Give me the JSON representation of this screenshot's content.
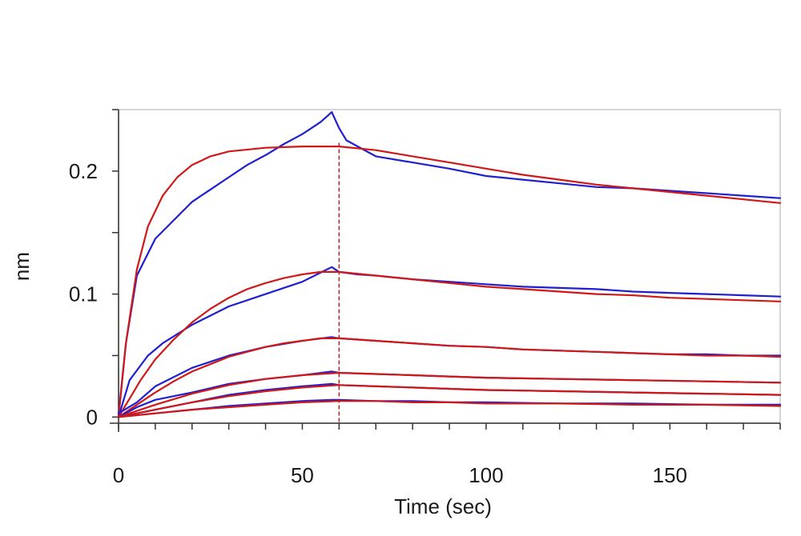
{
  "chart_data": {
    "type": "line",
    "xlabel": "Time (sec)",
    "ylabel": "nm",
    "xlim": [
      0,
      180
    ],
    "ylim": [
      -0.005,
      0.25
    ],
    "x_ticks": [
      {
        "value": 0,
        "label": "0"
      },
      {
        "value": 50,
        "label": "50"
      },
      {
        "value": 100,
        "label": "100"
      },
      {
        "value": 150,
        "label": "150"
      }
    ],
    "y_ticks": [
      {
        "value": 0,
        "label": "0"
      },
      {
        "value": 0.1,
        "label": "0.1"
      },
      {
        "value": 0.2,
        "label": "0.2"
      }
    ],
    "x_minor_step": 10,
    "y_minor_step": 0.05,
    "dissociation_start_x": 60,
    "grid": false,
    "colors": {
      "measured": "#1f1fd0",
      "fit": "#d01818",
      "axis": "#333333",
      "frame": "#c8c8c8",
      "marker_line": "#b22222"
    },
    "series": [
      {
        "role": "measured",
        "points": [
          [
            0,
            0.002
          ],
          [
            2,
            0.06
          ],
          [
            5,
            0.115
          ],
          [
            10,
            0.145
          ],
          [
            15,
            0.16
          ],
          [
            20,
            0.175
          ],
          [
            25,
            0.185
          ],
          [
            30,
            0.195
          ],
          [
            35,
            0.205
          ],
          [
            40,
            0.213
          ],
          [
            45,
            0.222
          ],
          [
            50,
            0.23
          ],
          [
            55,
            0.24
          ],
          [
            58,
            0.248
          ],
          [
            60,
            0.235
          ],
          [
            62,
            0.225
          ],
          [
            70,
            0.212
          ],
          [
            80,
            0.207
          ],
          [
            90,
            0.202
          ],
          [
            100,
            0.196
          ],
          [
            110,
            0.193
          ],
          [
            120,
            0.19
          ],
          [
            130,
            0.187
          ],
          [
            140,
            0.186
          ],
          [
            150,
            0.184
          ],
          [
            160,
            0.182
          ],
          [
            170,
            0.18
          ],
          [
            180,
            0.178
          ]
        ]
      },
      {
        "role": "fit",
        "points": [
          [
            0,
            0.0
          ],
          [
            2,
            0.06
          ],
          [
            5,
            0.12
          ],
          [
            8,
            0.155
          ],
          [
            12,
            0.18
          ],
          [
            16,
            0.195
          ],
          [
            20,
            0.205
          ],
          [
            25,
            0.212
          ],
          [
            30,
            0.216
          ],
          [
            40,
            0.219
          ],
          [
            50,
            0.22
          ],
          [
            60,
            0.22
          ],
          [
            70,
            0.217
          ],
          [
            80,
            0.212
          ],
          [
            90,
            0.207
          ],
          [
            100,
            0.202
          ],
          [
            110,
            0.197
          ],
          [
            120,
            0.193
          ],
          [
            130,
            0.189
          ],
          [
            140,
            0.186
          ],
          [
            150,
            0.183
          ],
          [
            160,
            0.18
          ],
          [
            170,
            0.177
          ],
          [
            180,
            0.174
          ]
        ]
      },
      {
        "role": "measured",
        "points": [
          [
            0,
            0.0
          ],
          [
            3,
            0.03
          ],
          [
            8,
            0.05
          ],
          [
            12,
            0.06
          ],
          [
            20,
            0.075
          ],
          [
            30,
            0.09
          ],
          [
            40,
            0.1
          ],
          [
            50,
            0.11
          ],
          [
            58,
            0.122
          ],
          [
            60,
            0.118
          ],
          [
            65,
            0.116
          ],
          [
            70,
            0.115
          ],
          [
            80,
            0.112
          ],
          [
            90,
            0.11
          ],
          [
            100,
            0.108
          ],
          [
            110,
            0.106
          ],
          [
            120,
            0.105
          ],
          [
            130,
            0.104
          ],
          [
            140,
            0.102
          ],
          [
            150,
            0.101
          ],
          [
            160,
            0.1
          ],
          [
            170,
            0.099
          ],
          [
            180,
            0.098
          ]
        ]
      },
      {
        "role": "fit",
        "points": [
          [
            0,
            0.0
          ],
          [
            3,
            0.015
          ],
          [
            6,
            0.03
          ],
          [
            10,
            0.047
          ],
          [
            15,
            0.063
          ],
          [
            20,
            0.077
          ],
          [
            25,
            0.088
          ],
          [
            30,
            0.097
          ],
          [
            35,
            0.104
          ],
          [
            40,
            0.109
          ],
          [
            45,
            0.113
          ],
          [
            50,
            0.116
          ],
          [
            55,
            0.118
          ],
          [
            60,
            0.118
          ],
          [
            70,
            0.115
          ],
          [
            80,
            0.112
          ],
          [
            90,
            0.109
          ],
          [
            100,
            0.106
          ],
          [
            110,
            0.104
          ],
          [
            120,
            0.102
          ],
          [
            130,
            0.1
          ],
          [
            140,
            0.099
          ],
          [
            150,
            0.097
          ],
          [
            160,
            0.096
          ],
          [
            170,
            0.095
          ],
          [
            180,
            0.094
          ]
        ]
      },
      {
        "role": "measured",
        "points": [
          [
            0,
            0.003
          ],
          [
            5,
            0.012
          ],
          [
            10,
            0.025
          ],
          [
            20,
            0.04
          ],
          [
            30,
            0.05
          ],
          [
            40,
            0.057
          ],
          [
            50,
            0.062
          ],
          [
            58,
            0.065
          ],
          [
            60,
            0.064
          ],
          [
            70,
            0.062
          ],
          [
            80,
            0.06
          ],
          [
            90,
            0.058
          ],
          [
            100,
            0.057
          ],
          [
            110,
            0.055
          ],
          [
            120,
            0.054
          ],
          [
            130,
            0.053
          ],
          [
            140,
            0.052
          ],
          [
            150,
            0.051
          ],
          [
            160,
            0.051
          ],
          [
            170,
            0.05
          ],
          [
            180,
            0.05
          ]
        ]
      },
      {
        "role": "fit",
        "points": [
          [
            0,
            0.0
          ],
          [
            5,
            0.01
          ],
          [
            10,
            0.02
          ],
          [
            15,
            0.029
          ],
          [
            20,
            0.037
          ],
          [
            25,
            0.043
          ],
          [
            30,
            0.049
          ],
          [
            35,
            0.053
          ],
          [
            40,
            0.057
          ],
          [
            45,
            0.06
          ],
          [
            50,
            0.062
          ],
          [
            55,
            0.064
          ],
          [
            60,
            0.064
          ],
          [
            70,
            0.062
          ],
          [
            80,
            0.06
          ],
          [
            90,
            0.058
          ],
          [
            100,
            0.057
          ],
          [
            110,
            0.055
          ],
          [
            120,
            0.054
          ],
          [
            130,
            0.053
          ],
          [
            140,
            0.052
          ],
          [
            150,
            0.051
          ],
          [
            160,
            0.05
          ],
          [
            170,
            0.05
          ],
          [
            180,
            0.049
          ]
        ]
      },
      {
        "role": "measured",
        "points": [
          [
            0,
            0.0
          ],
          [
            5,
            0.008
          ],
          [
            10,
            0.014
          ],
          [
            20,
            0.02
          ],
          [
            30,
            0.027
          ],
          [
            40,
            0.031
          ],
          [
            50,
            0.034
          ],
          [
            58,
            0.037
          ],
          [
            60,
            0.036
          ],
          [
            70,
            0.035
          ],
          [
            80,
            0.034
          ],
          [
            90,
            0.033
          ],
          [
            100,
            0.032
          ],
          [
            120,
            0.031
          ],
          [
            140,
            0.03
          ],
          [
            160,
            0.029
          ],
          [
            180,
            0.028
          ]
        ]
      },
      {
        "role": "fit",
        "points": [
          [
            0,
            0.0
          ],
          [
            10,
            0.01
          ],
          [
            20,
            0.019
          ],
          [
            30,
            0.026
          ],
          [
            40,
            0.031
          ],
          [
            50,
            0.034
          ],
          [
            60,
            0.036
          ],
          [
            70,
            0.035
          ],
          [
            80,
            0.034
          ],
          [
            90,
            0.033
          ],
          [
            100,
            0.032
          ],
          [
            120,
            0.031
          ],
          [
            140,
            0.03
          ],
          [
            160,
            0.029
          ],
          [
            180,
            0.028
          ]
        ]
      },
      {
        "role": "measured",
        "points": [
          [
            0,
            0.0
          ],
          [
            10,
            0.006
          ],
          [
            20,
            0.012
          ],
          [
            30,
            0.018
          ],
          [
            40,
            0.022
          ],
          [
            50,
            0.025
          ],
          [
            58,
            0.027
          ],
          [
            60,
            0.026
          ],
          [
            70,
            0.025
          ],
          [
            80,
            0.024
          ],
          [
            90,
            0.023
          ],
          [
            100,
            0.022
          ],
          [
            120,
            0.021
          ],
          [
            140,
            0.02
          ],
          [
            160,
            0.019
          ],
          [
            180,
            0.018
          ]
        ]
      },
      {
        "role": "fit",
        "points": [
          [
            0,
            0.0
          ],
          [
            10,
            0.006
          ],
          [
            20,
            0.012
          ],
          [
            30,
            0.017
          ],
          [
            40,
            0.021
          ],
          [
            50,
            0.024
          ],
          [
            60,
            0.026
          ],
          [
            70,
            0.025
          ],
          [
            80,
            0.024
          ],
          [
            90,
            0.023
          ],
          [
            100,
            0.022
          ],
          [
            120,
            0.021
          ],
          [
            140,
            0.02
          ],
          [
            160,
            0.019
          ],
          [
            180,
            0.018
          ]
        ]
      },
      {
        "role": "measured",
        "points": [
          [
            0,
            0.0
          ],
          [
            10,
            0.003
          ],
          [
            20,
            0.006
          ],
          [
            30,
            0.009
          ],
          [
            40,
            0.011
          ],
          [
            50,
            0.013
          ],
          [
            58,
            0.014
          ],
          [
            60,
            0.014
          ],
          [
            70,
            0.013
          ],
          [
            80,
            0.013
          ],
          [
            90,
            0.012
          ],
          [
            100,
            0.012
          ],
          [
            120,
            0.011
          ],
          [
            140,
            0.011
          ],
          [
            160,
            0.01
          ],
          [
            180,
            0.01
          ]
        ]
      },
      {
        "role": "fit",
        "points": [
          [
            0,
            0.0
          ],
          [
            10,
            0.003
          ],
          [
            20,
            0.006
          ],
          [
            30,
            0.008
          ],
          [
            40,
            0.01
          ],
          [
            50,
            0.012
          ],
          [
            60,
            0.013
          ],
          [
            70,
            0.013
          ],
          [
            80,
            0.012
          ],
          [
            90,
            0.012
          ],
          [
            100,
            0.011
          ],
          [
            120,
            0.011
          ],
          [
            140,
            0.01
          ],
          [
            160,
            0.01
          ],
          [
            180,
            0.009
          ]
        ]
      }
    ]
  }
}
